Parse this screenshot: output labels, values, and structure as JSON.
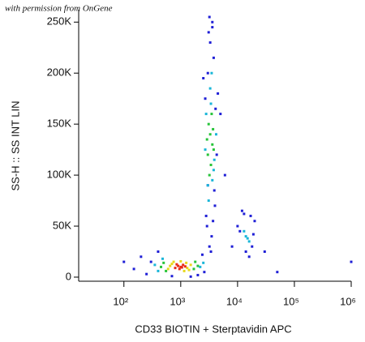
{
  "chart_data": {
    "type": "scatter",
    "annotation": "with permission from OnGene",
    "x_label": "CD33 BIOTIN + Sterptavidin APC",
    "y_label": "SS-H :: SS INT LIN",
    "x_scale": "log",
    "xlim": [
      16,
      1000000
    ],
    "ylim": [
      -4000,
      262144
    ],
    "xticks": [
      {
        "value": 100,
        "label": "10²"
      },
      {
        "value": 1000,
        "label": "10³"
      },
      {
        "value": 10000,
        "label": "10⁴"
      },
      {
        "value": 100000,
        "label": "10⁵"
      },
      {
        "value": 1000000,
        "label": "10⁶"
      }
    ],
    "yticks": [
      0,
      {
        "value": 50000,
        "label": "50K"
      },
      {
        "value": 100000,
        "label": "100K"
      },
      {
        "value": 150000,
        "label": "150K"
      },
      {
        "value": 200000,
        "label": "200K"
      },
      {
        "value": 250000,
        "label": "250K"
      }
    ],
    "series": [
      {
        "color": "#1f1fd6",
        "x": [
          200,
          250,
          300,
          2600,
          2000,
          400,
          3000,
          3300,
          3800,
          4500,
          2500,
          3600,
          3100,
          2800,
          4000,
          3500,
          3200,
          2900,
          3700,
          4300,
          3400,
          3000,
          5000,
          6000,
          8000,
          11000,
          12000,
          18000,
          20000,
          14000,
          17000,
          10000,
          16000,
          13000,
          19000,
          100,
          150,
          30000,
          50000,
          700,
          1500,
          2400,
          3200,
          3600,
          4100,
          3900,
          2700,
          1000000
        ],
        "values": [
          20000,
          3000,
          15000,
          5000,
          2000,
          25000,
          200000,
          230000,
          215000,
          180000,
          195000,
          245000,
          240000,
          60000,
          70000,
          40000,
          30000,
          50000,
          55000,
          120000,
          25000,
          90000,
          160000,
          100000,
          30000,
          45000,
          65000,
          30000,
          55000,
          25000,
          60000,
          50000,
          20000,
          62000,
          42000,
          15000,
          8000,
          25000,
          5000,
          1000,
          500,
          22000,
          255000,
          250000,
          165000,
          85000,
          175000,
          15000
        ]
      },
      {
        "color": "#19b6d8",
        "x": [
          350,
          400,
          2200,
          2500,
          480,
          3000,
          3400,
          3900,
          2800,
          3600,
          3300,
          4200,
          2700,
          3100,
          3500,
          3800,
          14000,
          16000,
          13000,
          15000
        ],
        "values": [
          12000,
          6000,
          10000,
          14000,
          18000,
          90000,
          170000,
          115000,
          160000,
          95000,
          185000,
          140000,
          125000,
          75000,
          200000,
          105000,
          40000,
          35000,
          45000,
          38000
        ]
      },
      {
        "color": "#27c43a",
        "x": [
          450,
          500,
          1700,
          2000,
          550,
          1800,
          3000,
          3300,
          3600,
          3100,
          3400,
          3800,
          2900,
          3500,
          3200,
          3700
        ],
        "values": [
          10000,
          14000,
          8000,
          11000,
          6000,
          15000,
          120000,
          140000,
          130000,
          150000,
          110000,
          125000,
          135000,
          160000,
          100000,
          145000
        ]
      },
      {
        "color": "#e8d81c",
        "x": [
          600,
          700,
          1300,
          1500,
          750,
          1400,
          1000,
          1150,
          650,
          1250
        ],
        "values": [
          8000,
          13000,
          9000,
          12000,
          15000,
          7000,
          15500,
          6000,
          11000,
          14000
        ]
      },
      {
        "color": "#e82a16",
        "x": [
          800,
          900,
          1000,
          1100,
          950,
          1200,
          850,
          1050
        ],
        "values": [
          9000,
          11000,
          10000,
          12000,
          8000,
          10500,
          12500,
          9500
        ]
      }
    ]
  }
}
